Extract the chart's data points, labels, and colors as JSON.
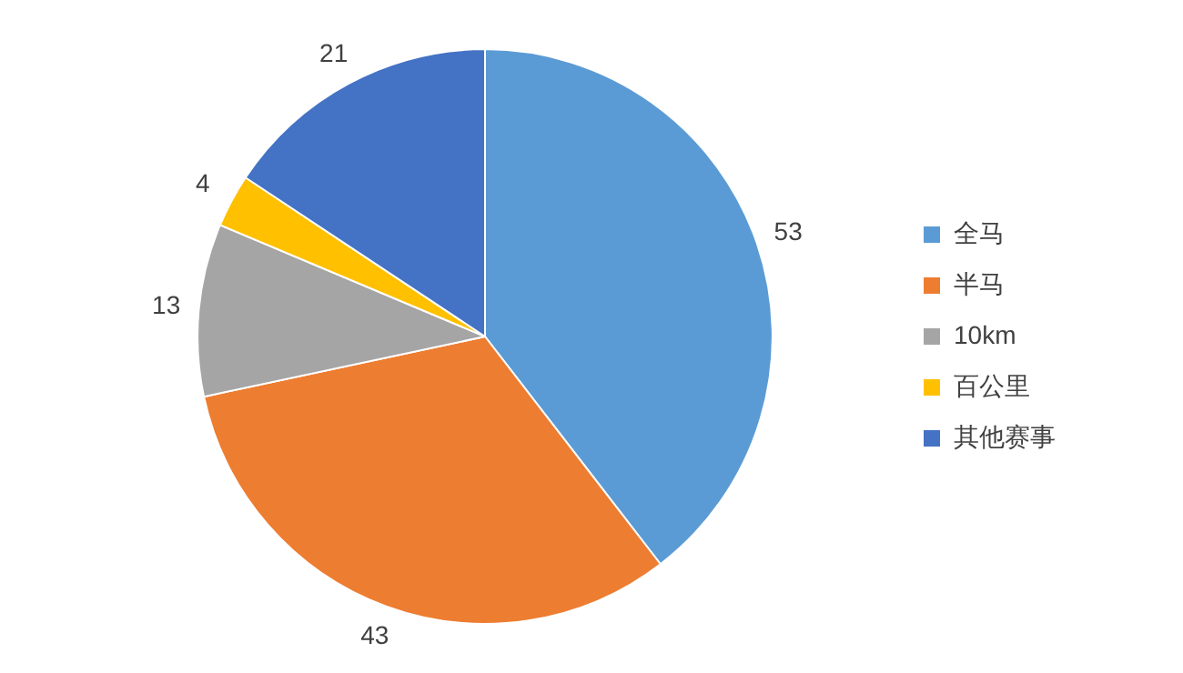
{
  "chart_data": {
    "type": "pie",
    "categories": [
      "全马",
      "半马",
      "10km",
      "百公里",
      "其他赛事"
    ],
    "values": [
      53,
      43,
      13,
      4,
      21
    ],
    "colors": [
      "#5b9bd5",
      "#ed7d31",
      "#a5a5a5",
      "#ffc000",
      "#4472c4"
    ],
    "data_labels": true,
    "legend": "right"
  }
}
